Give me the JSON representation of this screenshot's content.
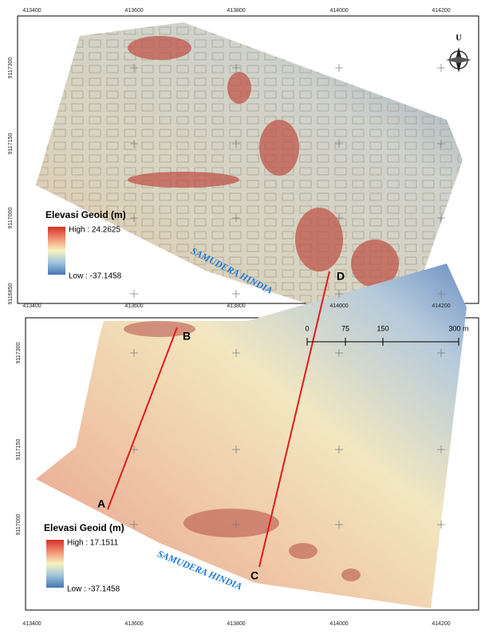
{
  "maps": [
    {
      "x_labels": [
        "413400",
        "413600",
        "413800",
        "414000",
        "414200"
      ],
      "y_labels": [
        "9117300",
        "9117150",
        "9117000",
        "9116850"
      ],
      "legend_title": "Elevasi Geoid (m)",
      "high": "High : 24.2625",
      "low": "Low : -37.1458",
      "sea_label": "SAMUDERA HINDIA",
      "north": "U"
    },
    {
      "x_labels": [
        "413400",
        "413600",
        "413800",
        "414000",
        "414200"
      ],
      "y_labels": [
        "9117300",
        "9117150",
        "9117000"
      ],
      "legend_title": "Elevasi Geoid (m)",
      "high": "High : 17.1511",
      "low": "Low : -37.1458",
      "sea_label": "SAMUDERA HINDIA",
      "scale_labels": [
        "0",
        "75",
        "150",
        "300 m"
      ],
      "profile_labels": [
        "A",
        "B",
        "C",
        "D"
      ]
    }
  ]
}
